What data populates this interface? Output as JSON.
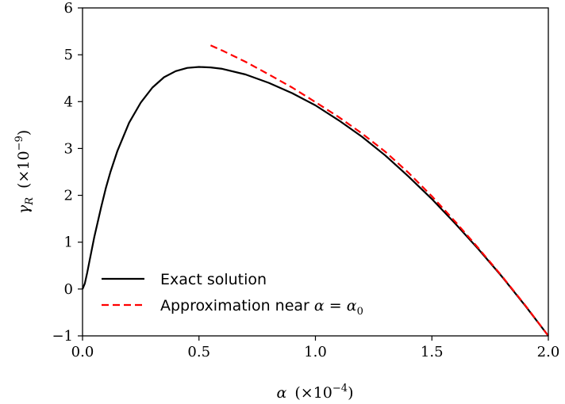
{
  "chart_data": {
    "type": "line",
    "xlabel": "α (×10⁻⁴)",
    "xlabel_parts": {
      "symbol": "α",
      "scale": "(×10",
      "exp": "−4",
      "close": ")"
    },
    "ylabel": "γR (×10⁻⁹)",
    "ylabel_parts": {
      "symbol": "γ",
      "sub": "R",
      "scale": "(×10",
      "exp": "−9",
      "close": ")"
    },
    "xlim": [
      0.0,
      2.0
    ],
    "ylim": [
      -1,
      6
    ],
    "xticks": [
      0.0,
      0.5,
      1.0,
      1.5,
      2.0
    ],
    "xtick_labels": [
      "0.0",
      "0.5",
      "1.0",
      "1.5",
      "2.0"
    ],
    "yticks": [
      -1,
      0,
      1,
      2,
      3,
      4,
      5,
      6
    ],
    "ytick_labels": [
      "−1",
      "0",
      "1",
      "2",
      "3",
      "4",
      "5",
      "6"
    ],
    "grid": false,
    "legend_position": "lower-left",
    "series": [
      {
        "name": "Exact solution",
        "color": "#000000",
        "style": "solid",
        "x": [
          0.0,
          0.01,
          0.02,
          0.03,
          0.05,
          0.08,
          0.1,
          0.12,
          0.15,
          0.2,
          0.25,
          0.3,
          0.35,
          0.4,
          0.45,
          0.5,
          0.55,
          0.6,
          0.7,
          0.8,
          0.9,
          1.0,
          1.1,
          1.2,
          1.3,
          1.4,
          1.5,
          1.6,
          1.7,
          1.8,
          1.9,
          2.0
        ],
        "y": [
          0.0,
          0.12,
          0.35,
          0.6,
          1.1,
          1.75,
          2.15,
          2.5,
          2.95,
          3.55,
          3.98,
          4.3,
          4.52,
          4.65,
          4.72,
          4.74,
          4.73,
          4.7,
          4.58,
          4.4,
          4.18,
          3.92,
          3.6,
          3.25,
          2.85,
          2.4,
          1.92,
          1.4,
          0.85,
          0.27,
          -0.35,
          -1.0
        ]
      },
      {
        "name": "Approximation near α = α₀",
        "name_parts": {
          "text": "Approximation near ",
          "math": "α = α",
          "sub": "0"
        },
        "color": "#ff0000",
        "style": "dashed",
        "x": [
          0.55,
          0.6,
          0.7,
          0.8,
          0.9,
          1.0,
          1.1,
          1.2,
          1.3,
          1.4,
          1.5,
          1.6,
          1.7,
          1.8,
          1.9,
          2.0
        ],
        "y": [
          5.2,
          5.09,
          4.85,
          4.58,
          4.3,
          3.99,
          3.67,
          3.32,
          2.93,
          2.48,
          1.98,
          1.44,
          0.87,
          0.28,
          -0.34,
          -1.0
        ]
      }
    ]
  }
}
